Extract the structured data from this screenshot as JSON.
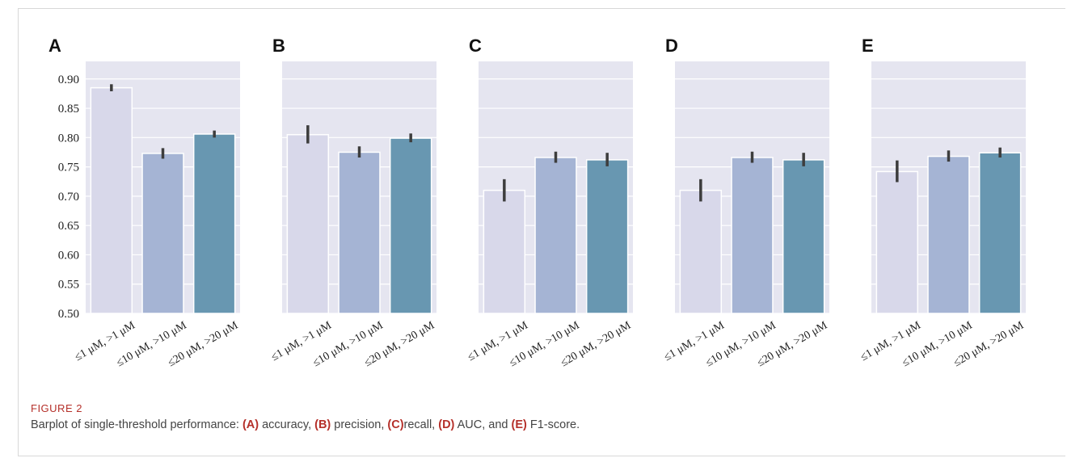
{
  "figure": {
    "caption_title": "FIGURE 2",
    "caption_prefix": "Barplot of single-threshold performance: ",
    "caption_parts": [
      {
        "label": "(A)",
        "text": " accuracy, "
      },
      {
        "label": "(B)",
        "text": " precision, "
      },
      {
        "label": "(C)",
        "text": "recall, "
      },
      {
        "label": "(D)",
        "text": " AUC, and "
      },
      {
        "label": "(E)",
        "text": " F1-score."
      }
    ]
  },
  "colors": {
    "background": "#e5e5f0",
    "bar1": "#d8d8ea",
    "bar2": "#a5b4d4",
    "bar3": "#6897b1",
    "errorbar": "#3d3d3d",
    "grid": "#ffffff"
  },
  "chart_data": [
    {
      "type": "bar",
      "panel": "A",
      "categories": [
        "≤1 μM, >1 μM",
        "≤10 μM, >10 μM",
        "≤20 μM, >20 μM"
      ],
      "values": [
        0.885,
        0.773,
        0.806
      ],
      "error": [
        [
          0.879,
          0.891
        ],
        [
          0.764,
          0.782
        ],
        [
          0.8,
          0.812
        ]
      ],
      "ylim": [
        0.5,
        0.93
      ],
      "yticks": [
        "0.50",
        "0.55",
        "0.60",
        "0.65",
        "0.70",
        "0.75",
        "0.80",
        "0.85",
        "0.90"
      ],
      "grid": true
    },
    {
      "type": "bar",
      "panel": "B",
      "categories": [
        "≤1 μM, >1 μM",
        "≤10 μM, >10 μM",
        "≤20 μM, >20 μM"
      ],
      "values": [
        0.805,
        0.775,
        0.799
      ],
      "error": [
        [
          0.79,
          0.821
        ],
        [
          0.766,
          0.785
        ],
        [
          0.792,
          0.807
        ]
      ],
      "ylim": [
        0.5,
        0.93
      ],
      "grid": true
    },
    {
      "type": "bar",
      "panel": "C",
      "categories": [
        "≤1 μM, >1 μM",
        "≤10 μM, >10 μM",
        "≤20 μM, >20 μM"
      ],
      "values": [
        0.71,
        0.766,
        0.762
      ],
      "error": [
        [
          0.691,
          0.729
        ],
        [
          0.757,
          0.776
        ],
        [
          0.751,
          0.774
        ]
      ],
      "ylim": [
        0.5,
        0.93
      ],
      "grid": true
    },
    {
      "type": "bar",
      "panel": "D",
      "categories": [
        "≤1 μM, >1 μM",
        "≤10 μM, >10 μM",
        "≤20 μM, >20 μM"
      ],
      "values": [
        0.71,
        0.766,
        0.762
      ],
      "error": [
        [
          0.691,
          0.729
        ],
        [
          0.757,
          0.776
        ],
        [
          0.751,
          0.774
        ]
      ],
      "ylim": [
        0.5,
        0.93
      ],
      "grid": true
    },
    {
      "type": "bar",
      "panel": "E",
      "categories": [
        "≤1 μM, >1 μM",
        "≤10 μM, >10 μM",
        "≤20 μM, >20 μM"
      ],
      "values": [
        0.742,
        0.768,
        0.774
      ],
      "error": [
        [
          0.724,
          0.761
        ],
        [
          0.759,
          0.778
        ],
        [
          0.766,
          0.783
        ]
      ],
      "ylim": [
        0.5,
        0.93
      ],
      "grid": true
    }
  ]
}
